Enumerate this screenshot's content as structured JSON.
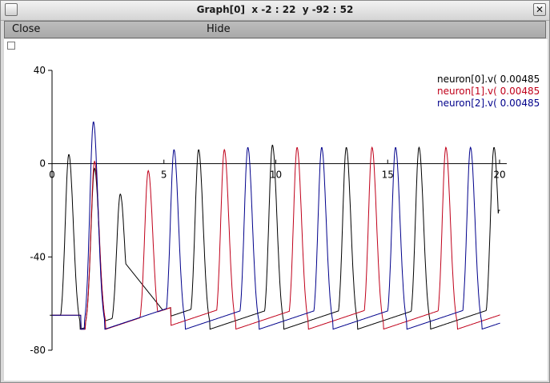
{
  "window": {
    "title": "Graph[0]  x -2 : 22  y -92 : 52",
    "close_icon_glyph": "✕"
  },
  "menu": {
    "close_label": "Close",
    "hide_label": "Hide"
  },
  "colors": {
    "neuron0": "#000000",
    "neuron1": "#c0001a",
    "neuron2": "#00008b",
    "axis": "#000000"
  },
  "chart_data": {
    "type": "line",
    "title": "",
    "xlabel": "",
    "ylabel": "",
    "xlim": [
      0,
      20
    ],
    "ylim": [
      -80,
      40
    ],
    "x_ticks": [
      0,
      5,
      10,
      15,
      20
    ],
    "y_ticks": [
      40,
      0,
      -40,
      -80
    ],
    "x_tick_labels": [
      "0",
      "5",
      "10",
      "15",
      "20"
    ],
    "y_tick_labels": [
      "40",
      "0",
      "-40",
      "-80"
    ],
    "legend_position": "top-right",
    "series": [
      {
        "name": "neuron[0].v( 0.00485",
        "color": "#000000",
        "baseline": -65,
        "kind": "black",
        "spikes": [
          {
            "t": 0.75,
            "peak": 4
          },
          {
            "t": 1.9,
            "peak": -2
          },
          {
            "t": 3.05,
            "peak": -13
          },
          {
            "t": 6.55,
            "peak": 6
          },
          {
            "t": 9.85,
            "peak": 8
          },
          {
            "t": 13.15,
            "peak": 7
          },
          {
            "t": 16.4,
            "peak": 7
          },
          {
            "t": 19.75,
            "peak": 7
          }
        ]
      },
      {
        "name": "neuron[1].v( 0.00485",
        "color": "#c0001a",
        "baseline": -65,
        "kind": "red",
        "spikes": [
          {
            "t": 1.9,
            "peak": 1
          },
          {
            "t": 4.3,
            "peak": -3
          },
          {
            "t": 7.7,
            "peak": 6
          },
          {
            "t": 10.95,
            "peak": 7
          },
          {
            "t": 14.3,
            "peak": 7
          },
          {
            "t": 17.6,
            "peak": 7
          }
        ]
      },
      {
        "name": "neuron[2].v( 0.00485",
        "color": "#00008b",
        "baseline": -65,
        "kind": "blue",
        "spikes": [
          {
            "t": 1.85,
            "peak": 18
          },
          {
            "t": 5.45,
            "peak": 6
          },
          {
            "t": 8.75,
            "peak": 7
          },
          {
            "t": 12.05,
            "peak": 7
          },
          {
            "t": 15.35,
            "peak": 7
          },
          {
            "t": 18.7,
            "peak": 7
          }
        ]
      }
    ]
  }
}
